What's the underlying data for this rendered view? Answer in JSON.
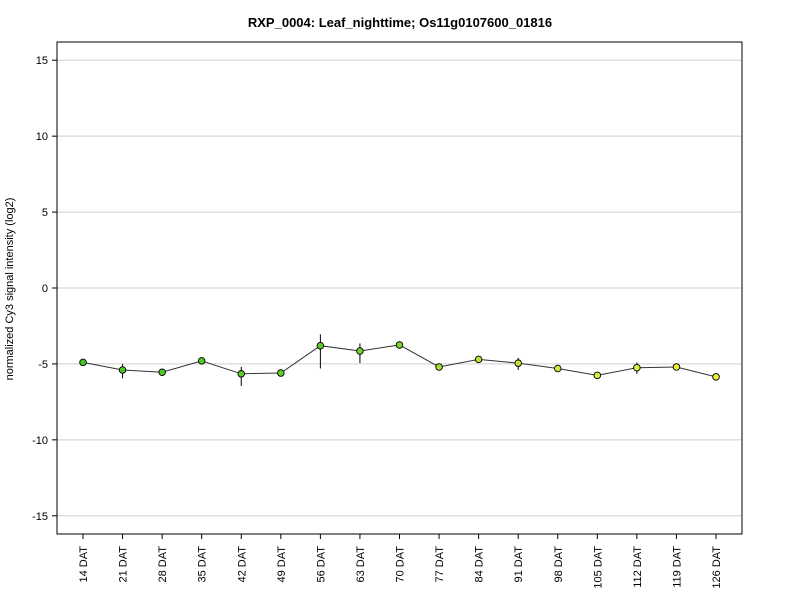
{
  "chart_data": {
    "type": "line",
    "title": "RXP_0004: Leaf_nighttime; Os11g0107600_01816",
    "xlabel": "",
    "ylabel": "normalized Cy3 signal intensity (log2)",
    "ylim": [
      -16.2,
      16.2
    ],
    "yticks": [
      -15,
      -10,
      -5,
      0,
      5,
      10,
      15
    ],
    "grid": true,
    "categories": [
      "14 DAT",
      "21 DAT",
      "28 DAT",
      "35 DAT",
      "42 DAT",
      "49 DAT",
      "56 DAT",
      "63 DAT",
      "70 DAT",
      "77 DAT",
      "84 DAT",
      "91 DAT",
      "98 DAT",
      "105 DAT",
      "112 DAT",
      "119 DAT",
      "126 DAT"
    ],
    "series": [
      {
        "values": [
          -4.9,
          -5.4,
          -5.55,
          -4.8,
          -5.65,
          -5.6,
          -3.8,
          -4.15,
          -3.75,
          -5.2,
          -4.7,
          -4.95,
          -5.3,
          -5.75,
          -5.25,
          -5.2,
          -5.85
        ],
        "error_low": [
          -4.9,
          -5.95,
          -5.55,
          -4.8,
          -6.45,
          -5.6,
          -5.3,
          -4.95,
          -3.75,
          -5.2,
          -4.7,
          -5.4,
          -5.3,
          -5.95,
          -5.65,
          -5.2,
          -5.85
        ],
        "error_high": [
          -4.9,
          -5.0,
          -5.55,
          -4.8,
          -5.2,
          -5.6,
          -3.05,
          -3.65,
          -3.75,
          -5.2,
          -4.7,
          -4.6,
          -5.3,
          -5.6,
          -4.9,
          -5.2,
          -5.85
        ],
        "marker_colors": [
          "#44c51f",
          "#4ac821",
          "#4fc923",
          "#55cb25",
          "#5acd26",
          "#61cf28",
          "#5dce27",
          "#72d32c",
          "#7cd52e",
          "#a6e036",
          "#b4e338",
          "#c2e63a",
          "#cfea3c",
          "#dbec3d",
          "#e2ee3f",
          "#e8ef3f",
          "#eef040"
        ]
      }
    ]
  }
}
